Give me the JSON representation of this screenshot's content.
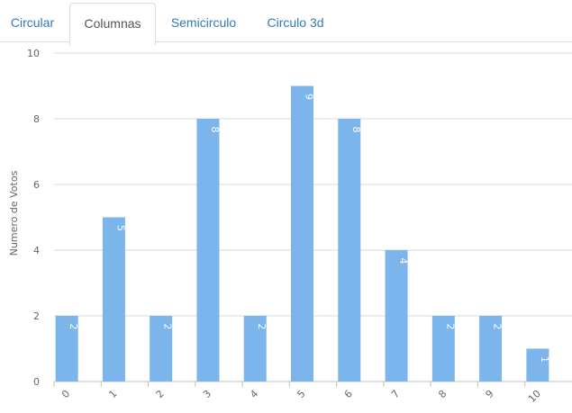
{
  "tabs": [
    {
      "label": "Circular",
      "active": false
    },
    {
      "label": "Columnas",
      "active": true
    },
    {
      "label": "Semicirculo",
      "active": false
    },
    {
      "label": "Circulo 3d",
      "active": false
    }
  ],
  "colors": {
    "bar": "#7cb5ec",
    "grid": "#d8d8d8",
    "axis_text": "#666666",
    "tab_link": "#337ab7",
    "tab_active": "#555555"
  },
  "chart_data": {
    "type": "bar",
    "categories": [
      "0",
      "1",
      "2",
      "3",
      "4",
      "5",
      "6",
      "7",
      "8",
      "9",
      "10"
    ],
    "values": [
      2,
      5,
      2,
      8,
      2,
      9,
      8,
      4,
      2,
      2,
      1
    ],
    "data_labels": [
      "2",
      "5",
      "2",
      "8",
      "2",
      "9",
      "8",
      "4",
      "2",
      "2",
      "1"
    ],
    "title": "",
    "xlabel": "",
    "ylabel": "Numero de Votos",
    "ylim": [
      0,
      10
    ],
    "yticks": [
      "0",
      "2",
      "4",
      "6",
      "8",
      "10"
    ],
    "grid": true,
    "legend": "none"
  }
}
